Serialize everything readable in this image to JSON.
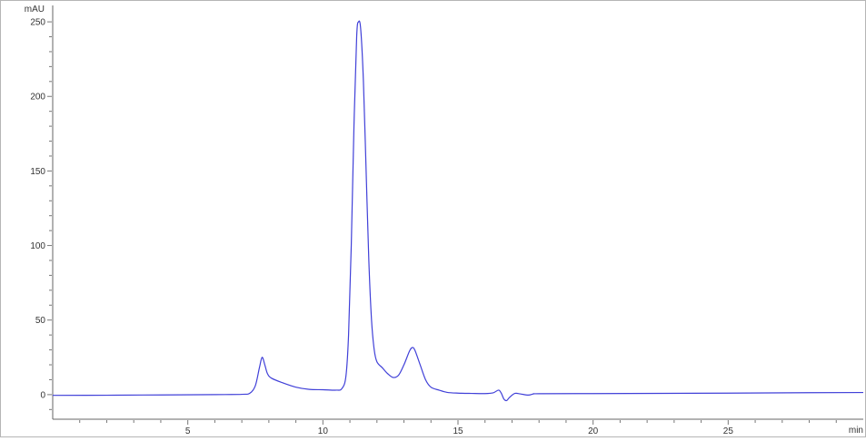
{
  "chart_data": {
    "type": "line",
    "title": "",
    "xlabel": "",
    "ylabel": "",
    "x_unit": "min",
    "y_unit": "mAU",
    "xlim": [
      0,
      30
    ],
    "ylim": [
      -16.5,
      261
    ],
    "x_ticks": [
      5,
      10,
      15,
      20,
      25
    ],
    "x_tick_labels": [
      "5",
      "10",
      "15",
      "20",
      "25"
    ],
    "y_ticks": [
      0,
      50,
      100,
      150,
      200,
      250
    ],
    "y_tick_labels": [
      "0",
      "50",
      "100",
      "150",
      "200",
      "250"
    ],
    "grid": false,
    "line_color": "#4040d8",
    "series": [
      {
        "x": [
          0,
          2,
          4,
          6,
          7,
          7.3,
          7.5,
          7.65,
          7.75,
          7.85,
          7.95,
          8.1,
          8.5,
          9,
          9.5,
          10,
          10.5,
          10.7,
          10.85,
          10.95,
          11.05,
          11.15,
          11.25,
          11.32,
          11.4,
          11.5,
          11.6,
          11.7,
          11.8,
          11.9,
          12.0,
          12.2,
          12.4,
          12.6,
          12.8,
          13.0,
          13.2,
          13.3,
          13.4,
          13.6,
          13.8,
          14.0,
          14.3,
          14.6,
          15,
          15.5,
          16,
          16.3,
          16.5,
          16.6,
          16.7,
          16.8,
          16.9,
          17.1,
          17.3,
          17.6,
          17.8,
          18,
          20,
          25,
          28,
          30
        ],
        "y": [
          -0.5,
          -0.4,
          -0.2,
          0,
          0.2,
          1,
          6,
          18,
          25,
          20,
          14,
          11,
          8,
          5,
          3.5,
          3.3,
          3,
          4,
          12,
          40,
          100,
          180,
          240,
          250,
          245,
          210,
          150,
          90,
          50,
          30,
          22,
          18,
          14,
          11.5,
          13,
          20,
          29,
          31.5,
          30,
          20,
          10,
          5,
          3,
          1.5,
          1,
          0.8,
          0.7,
          1.2,
          3,
          1,
          -3,
          -4,
          -2,
          0.8,
          0.5,
          -0.3,
          0.5,
          0.6,
          0.7,
          1,
          1.3,
          1.4
        ]
      }
    ]
  }
}
